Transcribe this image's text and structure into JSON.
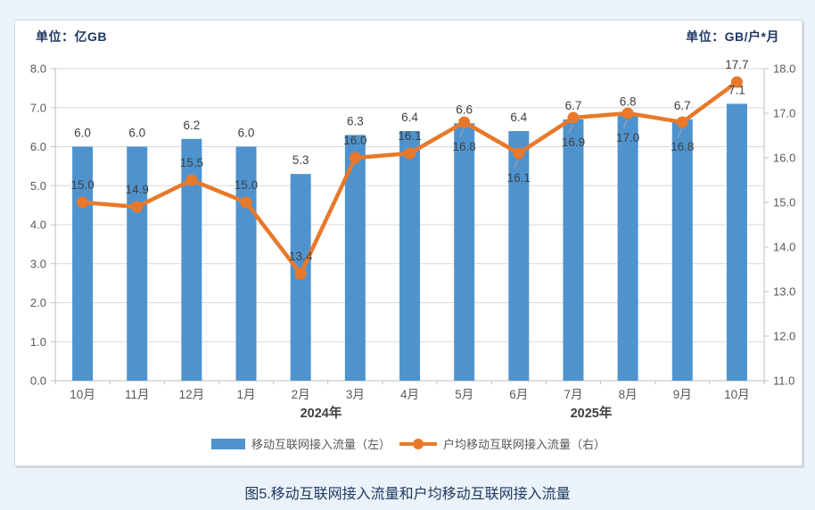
{
  "units": {
    "left": "单位：亿GB",
    "right": "单位：GB/户*月"
  },
  "caption": "图5.移动互联网接入流量和户均移动互联网接入流量",
  "legend": {
    "items": [
      {
        "label": "移动互联网接入流量（左）",
        "marker": "bar-swatch"
      },
      {
        "label": "户均移动互联网接入流量（右）",
        "marker": "line-dot-swatch"
      }
    ]
  },
  "colors": {
    "bar": "#4f93ce",
    "line": "#e8792a",
    "grid": "#d9d9d9",
    "axis_line": "#bfbfbf",
    "tick_label": "#595959",
    "data_label": "#404040",
    "leader_line": "#a6a6a6",
    "year_label": "#404040",
    "unit_label": "#1f3864",
    "caption": "#1f3a60",
    "background": "#ebf2fa",
    "panel": "#ffffff"
  },
  "chart_data": {
    "type": "bar",
    "subtype": "combo-bar-line-dual-axis",
    "title": "图5.移动互联网接入流量和户均移动互联网接入流量",
    "categories": [
      "10月",
      "11月",
      "12月",
      "1月",
      "2月",
      "3月",
      "4月",
      "5月",
      "6月",
      "7月",
      "8月",
      "9月",
      "10月"
    ],
    "year_labels": [
      "2024年",
      "2025年"
    ],
    "series": [
      {
        "name": "移动互联网接入流量（左）",
        "type": "bar",
        "axis": "left",
        "unit": "亿GB",
        "values": [
          6.0,
          6.0,
          6.2,
          6.0,
          5.3,
          6.3,
          6.4,
          6.6,
          6.4,
          6.7,
          6.8,
          6.7,
          7.1
        ]
      },
      {
        "name": "户均移动互联网接入流量（右）",
        "type": "line",
        "axis": "right",
        "unit": "GB/户*月",
        "values": [
          15.0,
          14.9,
          15.5,
          15.0,
          13.4,
          16.0,
          16.1,
          16.8,
          16.1,
          16.9,
          17.0,
          16.8,
          17.7
        ],
        "label_positions": [
          "above",
          "above",
          "above",
          "above",
          "above",
          "above",
          "above",
          "below",
          "below",
          "below",
          "below",
          "below",
          "above"
        ]
      }
    ],
    "left_axis": {
      "min": 0,
      "max": 8,
      "step": 1,
      "tick_labels": [
        "0.0",
        "1.0",
        "2.0",
        "3.0",
        "4.0",
        "5.0",
        "6.0",
        "7.0",
        "8.0"
      ]
    },
    "right_axis": {
      "min": 11,
      "max": 18,
      "step": 1,
      "tick_labels": [
        "11.0",
        "12.0",
        "13.0",
        "14.0",
        "15.0",
        "16.0",
        "17.0",
        "18.0"
      ]
    },
    "grid": true,
    "legend_position": "bottom"
  }
}
